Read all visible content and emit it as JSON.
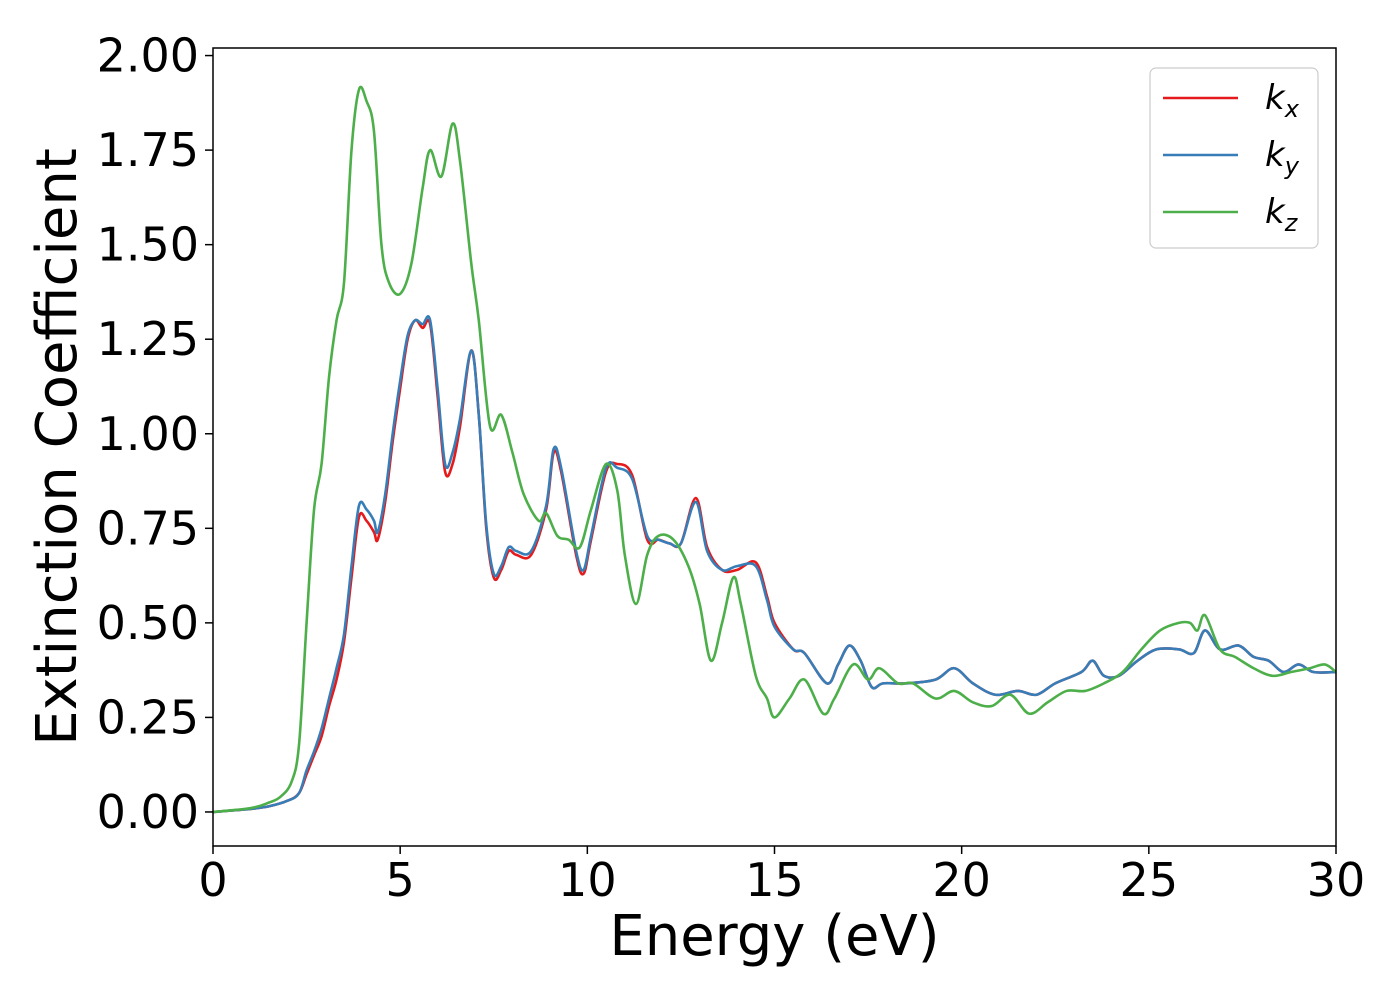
{
  "chart_data": {
    "type": "line",
    "xlabel": "Energy (eV)",
    "ylabel": "Extinction Coefficient",
    "xlim": [
      0,
      30
    ],
    "ylim": [
      -0.09,
      2.02
    ],
    "xticks": [
      0,
      5,
      10,
      15,
      20,
      25,
      30
    ],
    "xtick_labels": [
      "0",
      "5",
      "10",
      "15",
      "20",
      "25",
      "30"
    ],
    "yticks": [
      0,
      0.25,
      0.5,
      0.75,
      1.0,
      1.25,
      1.5,
      1.75,
      2.0
    ],
    "ytick_labels": [
      "0.00",
      "0.25",
      "0.50",
      "0.75",
      "1.00",
      "1.25",
      "1.50",
      "1.75",
      "2.00"
    ],
    "grid": false,
    "legend_position": "top-right",
    "series": [
      {
        "label_base": "k",
        "label_sub": "x",
        "color": "#e41a1c",
        "points": [
          [
            0,
            0
          ],
          [
            1,
            0.008
          ],
          [
            1.5,
            0.015
          ],
          [
            2,
            0.03
          ],
          [
            2.3,
            0.05
          ],
          [
            2.5,
            0.1
          ],
          [
            2.7,
            0.15
          ],
          [
            2.9,
            0.2
          ],
          [
            3.1,
            0.28
          ],
          [
            3.3,
            0.35
          ],
          [
            3.5,
            0.45
          ],
          [
            3.7,
            0.62
          ],
          [
            3.9,
            0.78
          ],
          [
            4.1,
            0.77
          ],
          [
            4.3,
            0.74
          ],
          [
            4.4,
            0.72
          ],
          [
            4.6,
            0.82
          ],
          [
            4.8,
            0.98
          ],
          [
            5.0,
            1.12
          ],
          [
            5.2,
            1.25
          ],
          [
            5.4,
            1.3
          ],
          [
            5.6,
            1.28
          ],
          [
            5.8,
            1.29
          ],
          [
            6.0,
            1.1
          ],
          [
            6.2,
            0.9
          ],
          [
            6.4,
            0.92
          ],
          [
            6.6,
            1.02
          ],
          [
            6.9,
            1.22
          ],
          [
            7.1,
            1.05
          ],
          [
            7.3,
            0.75
          ],
          [
            7.5,
            0.62
          ],
          [
            7.7,
            0.64
          ],
          [
            7.9,
            0.69
          ],
          [
            8.1,
            0.68
          ],
          [
            8.5,
            0.68
          ],
          [
            8.9,
            0.8
          ],
          [
            9.1,
            0.95
          ],
          [
            9.3,
            0.9
          ],
          [
            9.7,
            0.68
          ],
          [
            9.9,
            0.63
          ],
          [
            10.1,
            0.72
          ],
          [
            10.5,
            0.9
          ],
          [
            10.8,
            0.92
          ],
          [
            11.2,
            0.89
          ],
          [
            11.6,
            0.72
          ],
          [
            11.9,
            0.72
          ],
          [
            12.2,
            0.71
          ],
          [
            12.5,
            0.71
          ],
          [
            12.9,
            0.83
          ],
          [
            13.2,
            0.7
          ],
          [
            13.6,
            0.64
          ],
          [
            14.0,
            0.64
          ],
          [
            14.5,
            0.66
          ],
          [
            14.8,
            0.57
          ],
          [
            15.0,
            0.5
          ],
          [
            15.5,
            0.43
          ],
          [
            15.8,
            0.42
          ],
          [
            16.4,
            0.34
          ],
          [
            16.7,
            0.39
          ],
          [
            17.0,
            0.44
          ],
          [
            17.3,
            0.4
          ],
          [
            17.6,
            0.33
          ],
          [
            17.9,
            0.34
          ],
          [
            18.5,
            0.34
          ],
          [
            19.3,
            0.35
          ],
          [
            19.8,
            0.38
          ],
          [
            20.3,
            0.34
          ],
          [
            20.9,
            0.31
          ],
          [
            21.5,
            0.32
          ],
          [
            22.0,
            0.31
          ],
          [
            22.5,
            0.34
          ],
          [
            23.2,
            0.37
          ],
          [
            23.5,
            0.4
          ],
          [
            23.8,
            0.36
          ],
          [
            24.2,
            0.36
          ],
          [
            24.7,
            0.4
          ],
          [
            25.2,
            0.43
          ],
          [
            25.8,
            0.43
          ],
          [
            26.2,
            0.42
          ],
          [
            26.5,
            0.48
          ],
          [
            26.9,
            0.43
          ],
          [
            27.4,
            0.44
          ],
          [
            27.8,
            0.41
          ],
          [
            28.2,
            0.4
          ],
          [
            28.6,
            0.37
          ],
          [
            29.0,
            0.39
          ],
          [
            29.4,
            0.37
          ],
          [
            30,
            0.37
          ]
        ]
      },
      {
        "label_base": "k",
        "label_sub": "y",
        "color": "#377eb8",
        "points": [
          [
            0,
            0
          ],
          [
            1,
            0.008
          ],
          [
            1.5,
            0.015
          ],
          [
            2,
            0.03
          ],
          [
            2.3,
            0.05
          ],
          [
            2.5,
            0.11
          ],
          [
            2.7,
            0.16
          ],
          [
            2.9,
            0.22
          ],
          [
            3.1,
            0.3
          ],
          [
            3.3,
            0.38
          ],
          [
            3.5,
            0.47
          ],
          [
            3.7,
            0.65
          ],
          [
            3.9,
            0.81
          ],
          [
            4.1,
            0.8
          ],
          [
            4.3,
            0.77
          ],
          [
            4.4,
            0.74
          ],
          [
            4.6,
            0.84
          ],
          [
            4.8,
            1.0
          ],
          [
            5.0,
            1.14
          ],
          [
            5.2,
            1.26
          ],
          [
            5.4,
            1.3
          ],
          [
            5.6,
            1.29
          ],
          [
            5.8,
            1.3
          ],
          [
            6.0,
            1.12
          ],
          [
            6.2,
            0.92
          ],
          [
            6.4,
            0.95
          ],
          [
            6.6,
            1.04
          ],
          [
            6.9,
            1.22
          ],
          [
            7.1,
            1.05
          ],
          [
            7.3,
            0.76
          ],
          [
            7.5,
            0.63
          ],
          [
            7.7,
            0.65
          ],
          [
            7.9,
            0.7
          ],
          [
            8.1,
            0.69
          ],
          [
            8.5,
            0.69
          ],
          [
            8.9,
            0.81
          ],
          [
            9.1,
            0.96
          ],
          [
            9.3,
            0.91
          ],
          [
            9.7,
            0.69
          ],
          [
            9.9,
            0.64
          ],
          [
            10.1,
            0.73
          ],
          [
            10.5,
            0.91
          ],
          [
            10.8,
            0.91
          ],
          [
            11.2,
            0.88
          ],
          [
            11.6,
            0.73
          ],
          [
            11.9,
            0.72
          ],
          [
            12.2,
            0.71
          ],
          [
            12.5,
            0.71
          ],
          [
            12.9,
            0.82
          ],
          [
            13.2,
            0.69
          ],
          [
            13.6,
            0.64
          ],
          [
            14.0,
            0.65
          ],
          [
            14.5,
            0.65
          ],
          [
            14.8,
            0.56
          ],
          [
            15.0,
            0.49
          ],
          [
            15.5,
            0.43
          ],
          [
            15.8,
            0.42
          ],
          [
            16.4,
            0.34
          ],
          [
            16.7,
            0.39
          ],
          [
            17.0,
            0.44
          ],
          [
            17.3,
            0.4
          ],
          [
            17.6,
            0.33
          ],
          [
            17.9,
            0.34
          ],
          [
            18.5,
            0.34
          ],
          [
            19.3,
            0.35
          ],
          [
            19.8,
            0.38
          ],
          [
            20.3,
            0.34
          ],
          [
            20.9,
            0.31
          ],
          [
            21.5,
            0.32
          ],
          [
            22.0,
            0.31
          ],
          [
            22.5,
            0.34
          ],
          [
            23.2,
            0.37
          ],
          [
            23.5,
            0.4
          ],
          [
            23.8,
            0.36
          ],
          [
            24.2,
            0.36
          ],
          [
            24.7,
            0.4
          ],
          [
            25.2,
            0.43
          ],
          [
            25.8,
            0.43
          ],
          [
            26.2,
            0.42
          ],
          [
            26.5,
            0.48
          ],
          [
            26.9,
            0.43
          ],
          [
            27.4,
            0.44
          ],
          [
            27.8,
            0.41
          ],
          [
            28.2,
            0.4
          ],
          [
            28.6,
            0.37
          ],
          [
            29.0,
            0.39
          ],
          [
            29.4,
            0.37
          ],
          [
            30,
            0.37
          ]
        ]
      },
      {
        "label_base": "k",
        "label_sub": "z",
        "color": "#4daf4a",
        "points": [
          [
            0,
            0
          ],
          [
            1,
            0.01
          ],
          [
            1.5,
            0.025
          ],
          [
            1.8,
            0.04
          ],
          [
            2.1,
            0.08
          ],
          [
            2.3,
            0.18
          ],
          [
            2.5,
            0.5
          ],
          [
            2.7,
            0.8
          ],
          [
            2.9,
            0.92
          ],
          [
            3.1,
            1.15
          ],
          [
            3.3,
            1.3
          ],
          [
            3.5,
            1.4
          ],
          [
            3.7,
            1.75
          ],
          [
            3.9,
            1.91
          ],
          [
            4.1,
            1.88
          ],
          [
            4.3,
            1.8
          ],
          [
            4.5,
            1.5
          ],
          [
            4.7,
            1.4
          ],
          [
            5.0,
            1.37
          ],
          [
            5.3,
            1.45
          ],
          [
            5.6,
            1.65
          ],
          [
            5.8,
            1.75
          ],
          [
            6.1,
            1.68
          ],
          [
            6.4,
            1.82
          ],
          [
            6.6,
            1.72
          ],
          [
            6.9,
            1.45
          ],
          [
            7.1,
            1.3
          ],
          [
            7.4,
            1.02
          ],
          [
            7.7,
            1.05
          ],
          [
            8.0,
            0.95
          ],
          [
            8.3,
            0.84
          ],
          [
            8.7,
            0.77
          ],
          [
            8.9,
            0.79
          ],
          [
            9.2,
            0.73
          ],
          [
            9.5,
            0.72
          ],
          [
            9.8,
            0.7
          ],
          [
            10.1,
            0.8
          ],
          [
            10.5,
            0.92
          ],
          [
            10.8,
            0.85
          ],
          [
            11.0,
            0.68
          ],
          [
            11.3,
            0.55
          ],
          [
            11.6,
            0.68
          ],
          [
            11.9,
            0.73
          ],
          [
            12.3,
            0.72
          ],
          [
            12.7,
            0.65
          ],
          [
            13.0,
            0.55
          ],
          [
            13.3,
            0.4
          ],
          [
            13.6,
            0.5
          ],
          [
            13.9,
            0.62
          ],
          [
            14.1,
            0.55
          ],
          [
            14.5,
            0.36
          ],
          [
            14.8,
            0.3
          ],
          [
            15.0,
            0.25
          ],
          [
            15.4,
            0.3
          ],
          [
            15.8,
            0.35
          ],
          [
            16.3,
            0.26
          ],
          [
            16.6,
            0.3
          ],
          [
            17.1,
            0.39
          ],
          [
            17.5,
            0.35
          ],
          [
            17.8,
            0.38
          ],
          [
            18.3,
            0.34
          ],
          [
            18.7,
            0.34
          ],
          [
            19.3,
            0.3
          ],
          [
            19.8,
            0.32
          ],
          [
            20.3,
            0.29
          ],
          [
            20.8,
            0.28
          ],
          [
            21.3,
            0.31
          ],
          [
            21.8,
            0.26
          ],
          [
            22.3,
            0.29
          ],
          [
            22.8,
            0.32
          ],
          [
            23.3,
            0.32
          ],
          [
            23.8,
            0.34
          ],
          [
            24.3,
            0.37
          ],
          [
            24.8,
            0.43
          ],
          [
            25.3,
            0.48
          ],
          [
            25.8,
            0.5
          ],
          [
            26.1,
            0.5
          ],
          [
            26.3,
            0.48
          ],
          [
            26.5,
            0.52
          ],
          [
            26.9,
            0.43
          ],
          [
            27.3,
            0.41
          ],
          [
            27.8,
            0.38
          ],
          [
            28.3,
            0.36
          ],
          [
            28.8,
            0.37
          ],
          [
            29.3,
            0.38
          ],
          [
            29.7,
            0.39
          ],
          [
            30,
            0.37
          ]
        ]
      }
    ]
  }
}
